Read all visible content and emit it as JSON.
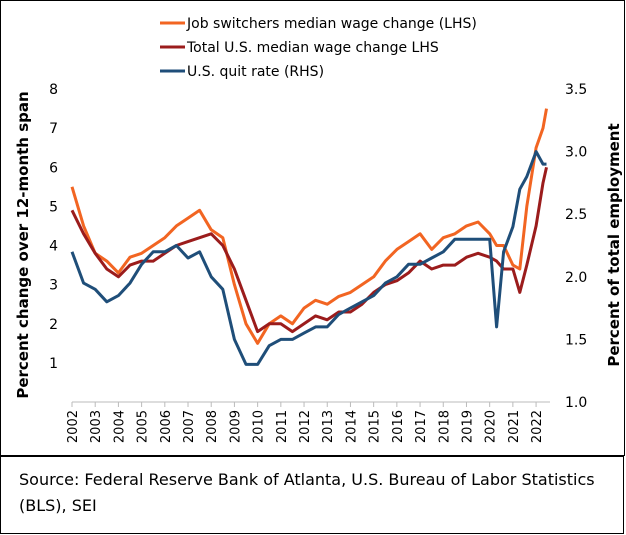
{
  "chart_data": {
    "type": "line",
    "y_label": "Percent change over 12-month span",
    "y2_label": "Percent of total employment",
    "x": [
      2002,
      2002.5,
      2003,
      2003.5,
      2004,
      2004.5,
      2005,
      2005.5,
      2006,
      2006.5,
      2007,
      2007.5,
      2008,
      2008.5,
      2009,
      2009.5,
      2010,
      2010.5,
      2011,
      2011.5,
      2012,
      2012.5,
      2013,
      2013.5,
      2014,
      2014.5,
      2015,
      2015.5,
      2016,
      2016.5,
      2017,
      2017.5,
      2018,
      2018.5,
      2019,
      2019.5,
      2020,
      2020.3,
      2020.6,
      2021,
      2021.3,
      2021.6,
      2022,
      2022.3,
      2022.45
    ],
    "series": [
      {
        "name": "Job switchers median wage change (LHS)",
        "color": "#f26522",
        "axis": "y",
        "values": [
          5.5,
          4.5,
          3.8,
          3.6,
          3.3,
          3.7,
          3.8,
          4.0,
          4.2,
          4.5,
          4.7,
          4.9,
          4.4,
          4.2,
          3.0,
          2.0,
          1.5,
          2.0,
          2.2,
          2.0,
          2.4,
          2.6,
          2.5,
          2.7,
          2.8,
          3.0,
          3.2,
          3.6,
          3.9,
          4.1,
          4.3,
          3.9,
          4.2,
          4.3,
          4.5,
          4.6,
          4.3,
          4.0,
          4.0,
          3.5,
          3.4,
          5.0,
          6.5,
          7.0,
          7.5
        ]
      },
      {
        "name": "Total U.S. median wage change LHS",
        "color": "#9b1c1c",
        "axis": "y",
        "values": [
          4.9,
          4.3,
          3.8,
          3.4,
          3.2,
          3.5,
          3.6,
          3.6,
          3.8,
          4.0,
          4.1,
          4.2,
          4.3,
          4.0,
          3.4,
          2.6,
          1.8,
          2.0,
          2.0,
          1.8,
          2.0,
          2.2,
          2.1,
          2.3,
          2.3,
          2.5,
          2.8,
          3.0,
          3.1,
          3.3,
          3.6,
          3.4,
          3.5,
          3.5,
          3.7,
          3.8,
          3.7,
          3.6,
          3.4,
          3.4,
          2.8,
          3.5,
          4.5,
          5.6,
          6.0
        ]
      },
      {
        "name": "U.S. quit rate (RHS)",
        "color": "#1f4e79",
        "axis": "y2",
        "values": [
          2.2,
          1.95,
          1.9,
          1.8,
          1.85,
          1.95,
          2.1,
          2.2,
          2.2,
          2.25,
          2.15,
          2.2,
          2.0,
          1.9,
          1.5,
          1.3,
          1.3,
          1.45,
          1.5,
          1.5,
          1.55,
          1.6,
          1.6,
          1.7,
          1.75,
          1.8,
          1.85,
          1.95,
          2.0,
          2.1,
          2.1,
          2.15,
          2.2,
          2.3,
          2.3,
          2.3,
          2.3,
          1.6,
          2.2,
          2.4,
          2.7,
          2.8,
          3.0,
          2.9,
          2.9
        ]
      }
    ],
    "xlim": [
      2002,
      2022.6
    ],
    "xticks": [
      2002,
      2003,
      2004,
      2005,
      2006,
      2007,
      2008,
      2009,
      2010,
      2011,
      2012,
      2013,
      2014,
      2015,
      2016,
      2017,
      2018,
      2019,
      2020,
      2021,
      2022
    ],
    "ylim": [
      0,
      8
    ],
    "yticks": [
      1,
      2,
      3,
      4,
      5,
      6,
      7,
      8
    ],
    "y2lim": [
      1.0,
      3.5
    ],
    "y2ticks": [
      {
        "value": 1.0,
        "label": "1.0"
      },
      1.5,
      {
        "value": 2.0,
        "label": "2.0"
      },
      2.5,
      {
        "value": 3.0,
        "label": "3.0"
      },
      3.5
    ],
    "source": "Source: Federal Reserve Bank of Atlanta, U.S. Bureau of Labor Statistics (BLS), SEI"
  }
}
